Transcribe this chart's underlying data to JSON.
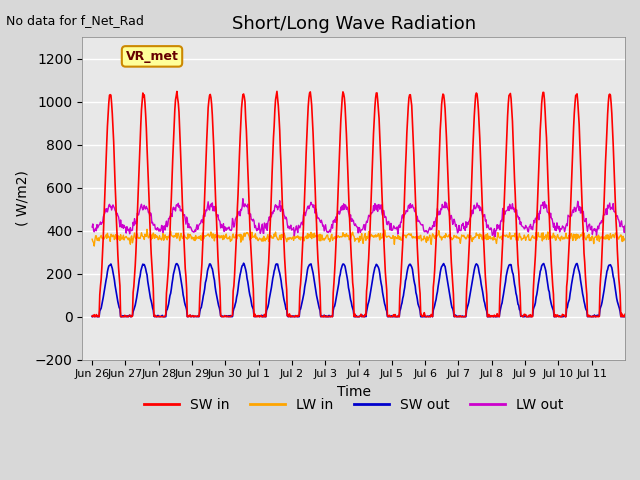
{
  "title": "Short/Long Wave Radiation",
  "subtitle": "No data for f_Net_Rad",
  "ylabel": "( W/m2)",
  "xlabel": "Time",
  "ylim": [
    -200,
    1300
  ],
  "yticks": [
    -200,
    0,
    200,
    400,
    600,
    800,
    1000,
    1200
  ],
  "fig_bg_color": "#d8d8d8",
  "plot_bg": "#e8e8e8",
  "colors": {
    "SW_in": "#ff0000",
    "LW_in": "#ffa500",
    "SW_out": "#0000cc",
    "LW_out": "#cc00cc"
  },
  "legend_labels": [
    "SW in",
    "LW in",
    "SW out",
    "LW out"
  ],
  "annotation_box": "VR_met",
  "x_tick_labels": [
    "Jun 26",
    "Jun 27",
    "Jun 28",
    "Jun 29",
    "Jun 30",
    "Jul 1",
    "Jul 2",
    "Jul 3",
    "Jul 4",
    "Jul 5",
    "Jul 6",
    "Jul 7",
    "Jul 8",
    "Jul 9",
    "Jul 10",
    "Jul 11"
  ],
  "num_days": 16,
  "SW_in_peak": 1040,
  "SW_out_peak": 240,
  "LW_in_base": 350,
  "LW_in_day_amp": 70,
  "LW_out_base": 390,
  "LW_out_day_amp": 250
}
